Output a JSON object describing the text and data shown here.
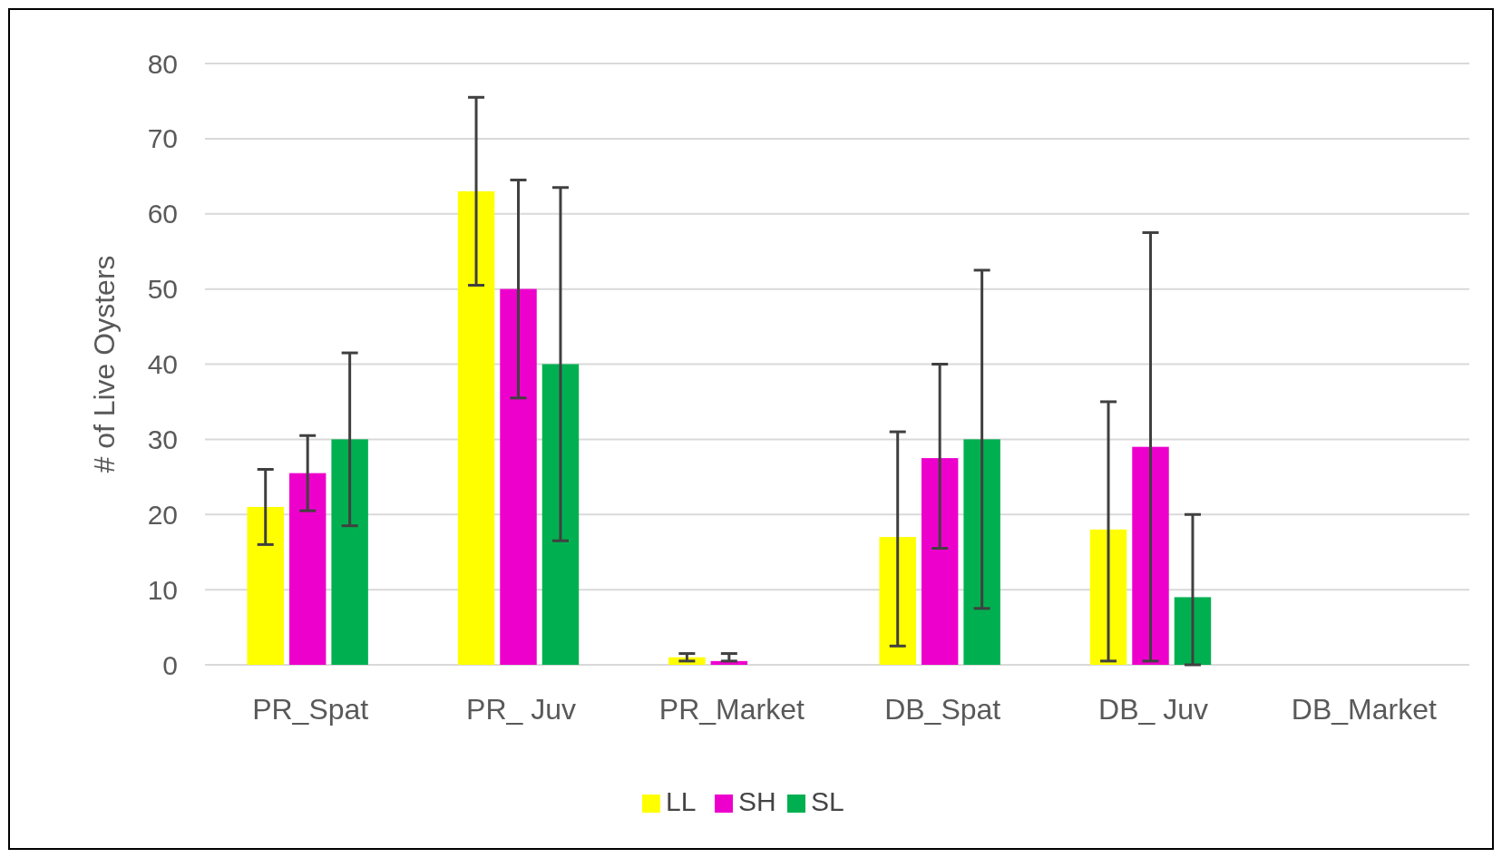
{
  "chart_data": {
    "type": "bar",
    "ylabel": "# of Live Oysters",
    "categories": [
      "PR_Spat",
      "PR_ Juv",
      "PR_Market",
      "DB_Spat",
      "DB_ Juv",
      "DB_Market"
    ],
    "series": [
      {
        "name": "LL",
        "color": "#ffff00",
        "values": [
          21,
          63,
          1,
          17,
          18,
          0
        ],
        "errors": [
          [
            16,
            26
          ],
          [
            50.5,
            75.5
          ],
          0.5,
          [
            2.5,
            31
          ],
          [
            0.5,
            35
          ],
          null
        ]
      },
      {
        "name": "SH",
        "color": "#ee00cc",
        "values": [
          25.5,
          50,
          0.5,
          27.5,
          29,
          0
        ],
        "errors": [
          [
            20.5,
            30.5
          ],
          [
            35.5,
            64.5
          ],
          [
            0.5,
            1.5
          ],
          [
            15.5,
            40
          ],
          [
            0.5,
            57.5
          ],
          null
        ]
      },
      {
        "name": "SL",
        "color": "#00b050",
        "values": [
          30,
          40,
          0,
          30,
          9,
          0
        ],
        "errors": [
          [
            18.5,
            41.5
          ],
          [
            16.5,
            63.5
          ],
          null,
          [
            7.5,
            52.5
          ],
          [
            0,
            20
          ],
          null
        ]
      }
    ],
    "ylim": [
      0,
      80
    ],
    "yticks": [
      0,
      10,
      20,
      30,
      40,
      50,
      60,
      70,
      80
    ],
    "grid": "y",
    "legend": "bottom"
  }
}
